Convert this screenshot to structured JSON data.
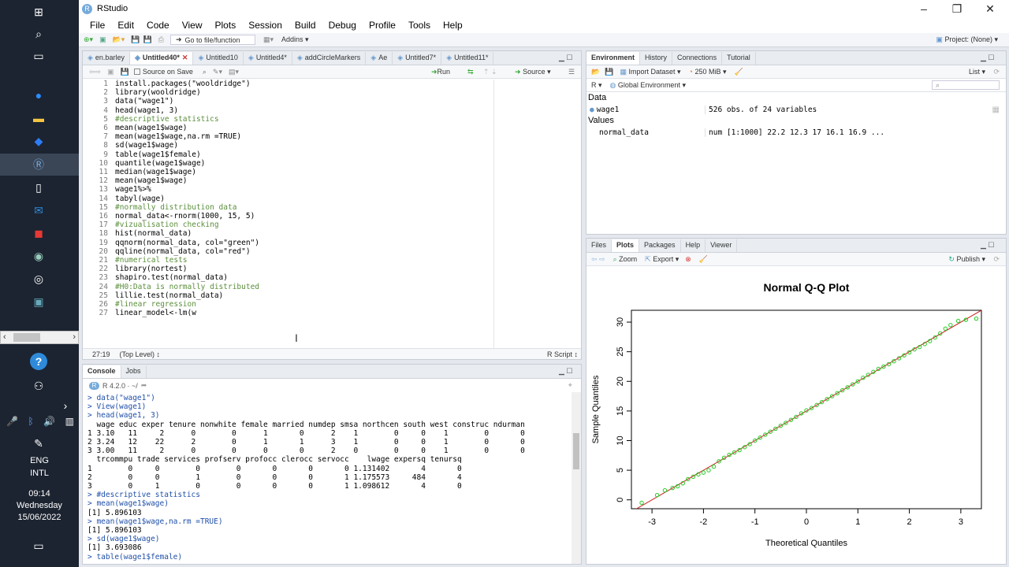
{
  "taskbar": {
    "icons": [
      "windows-icon",
      "search-icon",
      "task-view-icon",
      "zoom-icon",
      "file-explorer-icon",
      "dropbox-icon",
      "rstudio-icon",
      "document-icon",
      "mail-icon",
      "app-icon",
      "chrome-icon",
      "obs-icon",
      "settings-icon"
    ],
    "help_icon": "?",
    "lang_top": "ENG",
    "lang_bottom": "INTL",
    "time": "09:14",
    "day": "Wednesday",
    "date": "15/06/2022"
  },
  "window": {
    "title": "RStudio"
  },
  "menu": [
    "File",
    "Edit",
    "Code",
    "View",
    "Plots",
    "Session",
    "Build",
    "Debug",
    "Profile",
    "Tools",
    "Help"
  ],
  "toolbar": {
    "goto": "Go to file/function",
    "addins": "Addins",
    "project": "Project: (None)"
  },
  "editor": {
    "tabs": [
      "en.barley",
      "Untitled40*",
      "Untitled10",
      "Untitled4*",
      "addCircleMarkers",
      "Ae",
      "Untitled7*",
      "Untitled11*"
    ],
    "source_on_save": "Source on Save",
    "run": "Run",
    "source": "Source",
    "lines": [
      "install.packages(\"wooldridge\")",
      "library(wooldridge)",
      "data(\"wage1\")",
      "head(wage1, 3)",
      "#descriptive statistics",
      "mean(wage1$wage)",
      "mean(wage1$wage,na.rm =TRUE)",
      "sd(wage1$wage)",
      "table(wage1$female)",
      "quantile(wage1$wage)",
      "median(wage1$wage)",
      "mean(wage1$wage)",
      "wage1%>%",
      "tabyl(wage)",
      "#normally distribution data",
      "normal_data<-rnorm(1000, 15, 5)",
      "#vizualisation checking",
      "hist(normal_data)",
      "qqnorm(normal_data, col=\"green\")",
      "qqline(normal_data, col=\"red\")",
      "#numerical tests",
      "library(nortest)",
      "shapiro.test(normal_data)",
      "#H0:Data is normally distributed",
      "lillie.test(normal_data)",
      "#linear regression",
      "linear_model<-lm(w"
    ],
    "status_pos": "27:19",
    "status_scope": "(Top Level) ↕",
    "status_type": "R Script ↕"
  },
  "console": {
    "tabs": [
      "Console",
      "Jobs"
    ],
    "version": "R 4.2.0 · ~/",
    "lines": [
      "> data(\"wage1\")",
      "> View(wage1)",
      "> head(wage1, 3)",
      "  wage educ exper tenure nonwhite female married numdep smsa northcen south west construc ndurman",
      "1 3.10   11     2      0        0      1       0      2    1        0     0    1        0       0",
      "2 3.24   12    22      2        0      1       1      3    1        0     0    1        0       0",
      "3 3.00   11     2      0        0      0       0      2    0        0     0    1        0       0",
      "  trcommpu trade services profserv profocc clerocc servocc    lwage expersq tenursq",
      "1        0     0        0        0       0       0       0 1.131402       4       0",
      "2        0     0        1        0       0       0       1 1.175573     484       4",
      "3        0     1        0        0       0       0       1 1.098612       4       0",
      "> #descriptive statistics",
      "> mean(wage1$wage)",
      "[1] 5.896103",
      "> mean(wage1$wage,na.rm =TRUE)",
      "[1] 5.896103",
      "> sd(wage1$wage)",
      "[1] 3.693086",
      "> table(wage1$female)"
    ]
  },
  "environment": {
    "tabs": [
      "Environment",
      "History",
      "Connections",
      "Tutorial"
    ],
    "import": "Import Dataset",
    "memory": "250 MiB",
    "list": "List",
    "lang": "R",
    "scope": "Global Environment",
    "section_data": "Data",
    "section_values": "Values",
    "rows_data": [
      {
        "name": "wage1",
        "value": "526 obs. of 24 variables"
      }
    ],
    "rows_values": [
      {
        "name": "normal_data",
        "value": "num [1:1000] 22.2 12.3 17 16.1 16.9 ..."
      }
    ]
  },
  "files": {
    "tabs": [
      "Files",
      "Plots",
      "Packages",
      "Help",
      "Viewer"
    ],
    "zoom": "Zoom",
    "export": "Export",
    "publish": "Publish"
  },
  "chart_data": {
    "type": "scatter",
    "title": "Normal Q-Q Plot",
    "xlabel": "Theoretical Quantiles",
    "ylabel": "Sample Quantiles",
    "xlim": [
      -3.4,
      3.4
    ],
    "ylim": [
      -1.5,
      32
    ],
    "xticks": [
      -3,
      -2,
      -1,
      0,
      1,
      2,
      3
    ],
    "yticks": [
      0,
      5,
      10,
      15,
      20,
      25,
      30
    ],
    "point_color": "#22cc22",
    "line_color": "#cc2222",
    "qqline": {
      "intercept": 15,
      "slope": 5
    },
    "points": [
      [
        -3.2,
        -0.5
      ],
      [
        -2.9,
        0.8
      ],
      [
        -2.75,
        1.6
      ],
      [
        -2.6,
        2.0
      ],
      [
        -2.5,
        2.3
      ],
      [
        -2.4,
        2.8
      ],
      [
        -2.3,
        3.5
      ],
      [
        -2.2,
        3.9
      ],
      [
        -2.1,
        4.3
      ],
      [
        -2.0,
        4.6
      ],
      [
        -1.9,
        5.0
      ],
      [
        -1.8,
        5.6
      ],
      [
        -1.7,
        6.5
      ],
      [
        -1.6,
        7.1
      ],
      [
        -1.5,
        7.6
      ],
      [
        -1.4,
        8.0
      ],
      [
        -1.3,
        8.4
      ],
      [
        -1.2,
        8.9
      ],
      [
        -1.1,
        9.4
      ],
      [
        -1.0,
        10.0
      ],
      [
        -0.9,
        10.5
      ],
      [
        -0.8,
        11.0
      ],
      [
        -0.7,
        11.5
      ],
      [
        -0.6,
        12.0
      ],
      [
        -0.5,
        12.5
      ],
      [
        -0.4,
        13.0
      ],
      [
        -0.3,
        13.5
      ],
      [
        -0.2,
        14.0
      ],
      [
        -0.1,
        14.6
      ],
      [
        0.0,
        15.1
      ],
      [
        0.1,
        15.5
      ],
      [
        0.2,
        16.0
      ],
      [
        0.3,
        16.5
      ],
      [
        0.4,
        17.0
      ],
      [
        0.5,
        17.5
      ],
      [
        0.6,
        18.0
      ],
      [
        0.7,
        18.5
      ],
      [
        0.8,
        19.0
      ],
      [
        0.9,
        19.5
      ],
      [
        1.0,
        20.0
      ],
      [
        1.1,
        20.6
      ],
      [
        1.2,
        21.1
      ],
      [
        1.3,
        21.6
      ],
      [
        1.4,
        22.1
      ],
      [
        1.5,
        22.5
      ],
      [
        1.6,
        22.9
      ],
      [
        1.7,
        23.4
      ],
      [
        1.8,
        23.9
      ],
      [
        1.9,
        24.4
      ],
      [
        2.0,
        24.9
      ],
      [
        2.1,
        25.4
      ],
      [
        2.2,
        25.8
      ],
      [
        2.3,
        26.3
      ],
      [
        2.4,
        26.8
      ],
      [
        2.5,
        27.4
      ],
      [
        2.6,
        28.1
      ],
      [
        2.7,
        28.9
      ],
      [
        2.8,
        29.5
      ],
      [
        2.95,
        30.2
      ],
      [
        3.1,
        30.4
      ],
      [
        3.3,
        30.6
      ]
    ]
  }
}
